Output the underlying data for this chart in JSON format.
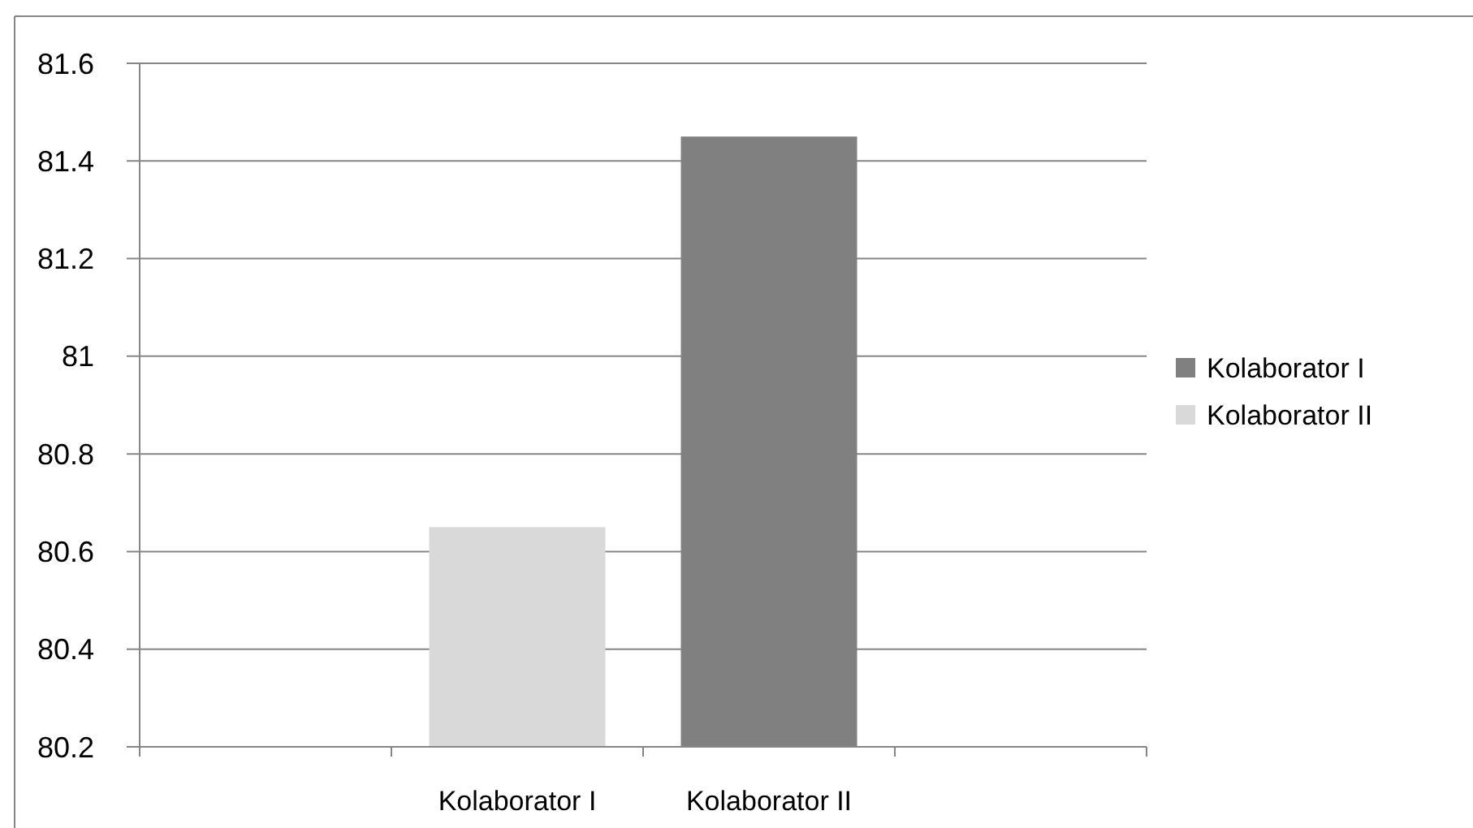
{
  "chart_data": {
    "type": "bar",
    "categories": [
      null,
      "Kolaborator I",
      "Kolaborator II",
      null
    ],
    "series": [
      {
        "name": "Kolaborator I",
        "color": "#808080",
        "values": [
          null,
          null,
          81.45,
          null
        ]
      },
      {
        "name": "Kolaborator II",
        "color": "#d9d9d9",
        "values": [
          null,
          80.65,
          null,
          null
        ]
      }
    ],
    "ylim": [
      80.2,
      81.6
    ],
    "yticks": [
      80.2,
      80.4,
      80.6,
      80.8,
      81,
      81.2,
      81.4,
      81.6
    ],
    "grid": "y",
    "legend": "right"
  }
}
